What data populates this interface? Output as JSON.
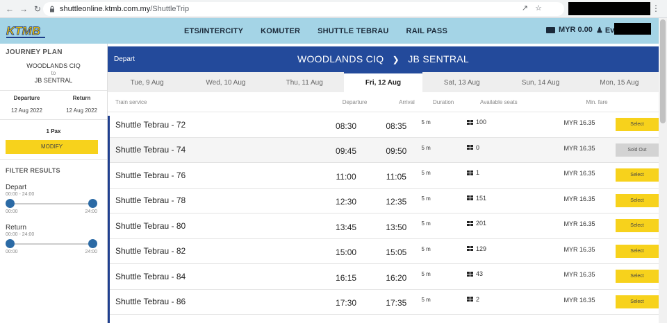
{
  "browser": {
    "url_domain": "shuttleonline.ktmb.com.my",
    "url_path": "/ShuttleTrip"
  },
  "header": {
    "logo_text": "KTMB",
    "nav": [
      "ETS/INTERCITY",
      "KOMUTER",
      "SHUTTLE TEBRAU",
      "RAIL PASS"
    ],
    "wallet": "MYR 0.00",
    "user": "Eva"
  },
  "sidebar": {
    "title": "JOURNEY PLAN",
    "origin": "WOODLANDS CIQ",
    "to": "to",
    "destination": "JB SENTRAL",
    "departure_label": "Departure",
    "return_label": "Return",
    "departure_date": "12 Aug 2022",
    "return_date": "12 Aug 2022",
    "pax": "1 Pax",
    "modify": "MODIFY",
    "filter_title": "FILTER RESULTS",
    "depart_label": "Depart",
    "depart_range": "00:00 - 24:00",
    "return_filter_label": "Return",
    "return_range": "00:00 - 24:00",
    "tick_min": "00:00",
    "tick_max": "24:00"
  },
  "main": {
    "section_label": "Depart",
    "route_from": "WOODLANDS CIQ",
    "route_arrow": "❯",
    "route_to": "JB SENTRAL",
    "days": [
      "Tue, 9 Aug",
      "Wed, 10 Aug",
      "Thu, 11 Aug",
      "Fri, 12 Aug",
      "Sat, 13 Aug",
      "Sun, 14 Aug",
      "Mon, 15 Aug"
    ],
    "active_day_index": 3,
    "columns": {
      "service": "Train service",
      "departure": "Departure",
      "arrival": "Arrival",
      "duration": "Duration",
      "seats": "Available seats",
      "fare": "Min. fare"
    },
    "rows": [
      {
        "service": "Shuttle Tebrau - 72",
        "dep": "08:30",
        "arr": "08:35",
        "dur": "5 m",
        "seats": "100",
        "fare": "MYR 16.35",
        "action": "Select"
      },
      {
        "service": "Shuttle Tebrau - 74",
        "dep": "09:45",
        "arr": "09:50",
        "dur": "5 m",
        "seats": "0",
        "fare": "MYR 16.35",
        "action": "Sold Out"
      },
      {
        "service": "Shuttle Tebrau - 76",
        "dep": "11:00",
        "arr": "11:05",
        "dur": "5 m",
        "seats": "1",
        "fare": "MYR 16.35",
        "action": "Select"
      },
      {
        "service": "Shuttle Tebrau - 78",
        "dep": "12:30",
        "arr": "12:35",
        "dur": "5 m",
        "seats": "151",
        "fare": "MYR 16.35",
        "action": "Select"
      },
      {
        "service": "Shuttle Tebrau - 80",
        "dep": "13:45",
        "arr": "13:50",
        "dur": "5 m",
        "seats": "201",
        "fare": "MYR 16.35",
        "action": "Select"
      },
      {
        "service": "Shuttle Tebrau - 82",
        "dep": "15:00",
        "arr": "15:05",
        "dur": "5 m",
        "seats": "129",
        "fare": "MYR 16.35",
        "action": "Select"
      },
      {
        "service": "Shuttle Tebrau - 84",
        "dep": "16:15",
        "arr": "16:20",
        "dur": "5 m",
        "seats": "43",
        "fare": "MYR 16.35",
        "action": "Select"
      },
      {
        "service": "Shuttle Tebrau - 86",
        "dep": "17:30",
        "arr": "17:35",
        "dur": "5 m",
        "seats": "2",
        "fare": "MYR 16.35",
        "action": "Select"
      }
    ]
  },
  "colors": {
    "header_bg": "#a4d4e6",
    "primary_blue": "#234a9b",
    "accent_yellow": "#f7d21c",
    "slider_knob": "#2b6aa5"
  },
  "icons": {
    "back": "arrow-left-icon",
    "forward": "arrow-right-icon",
    "reload": "reload-icon",
    "seat": "seat-grid-icon",
    "wallet": "card-icon",
    "user": "user-icon"
  }
}
